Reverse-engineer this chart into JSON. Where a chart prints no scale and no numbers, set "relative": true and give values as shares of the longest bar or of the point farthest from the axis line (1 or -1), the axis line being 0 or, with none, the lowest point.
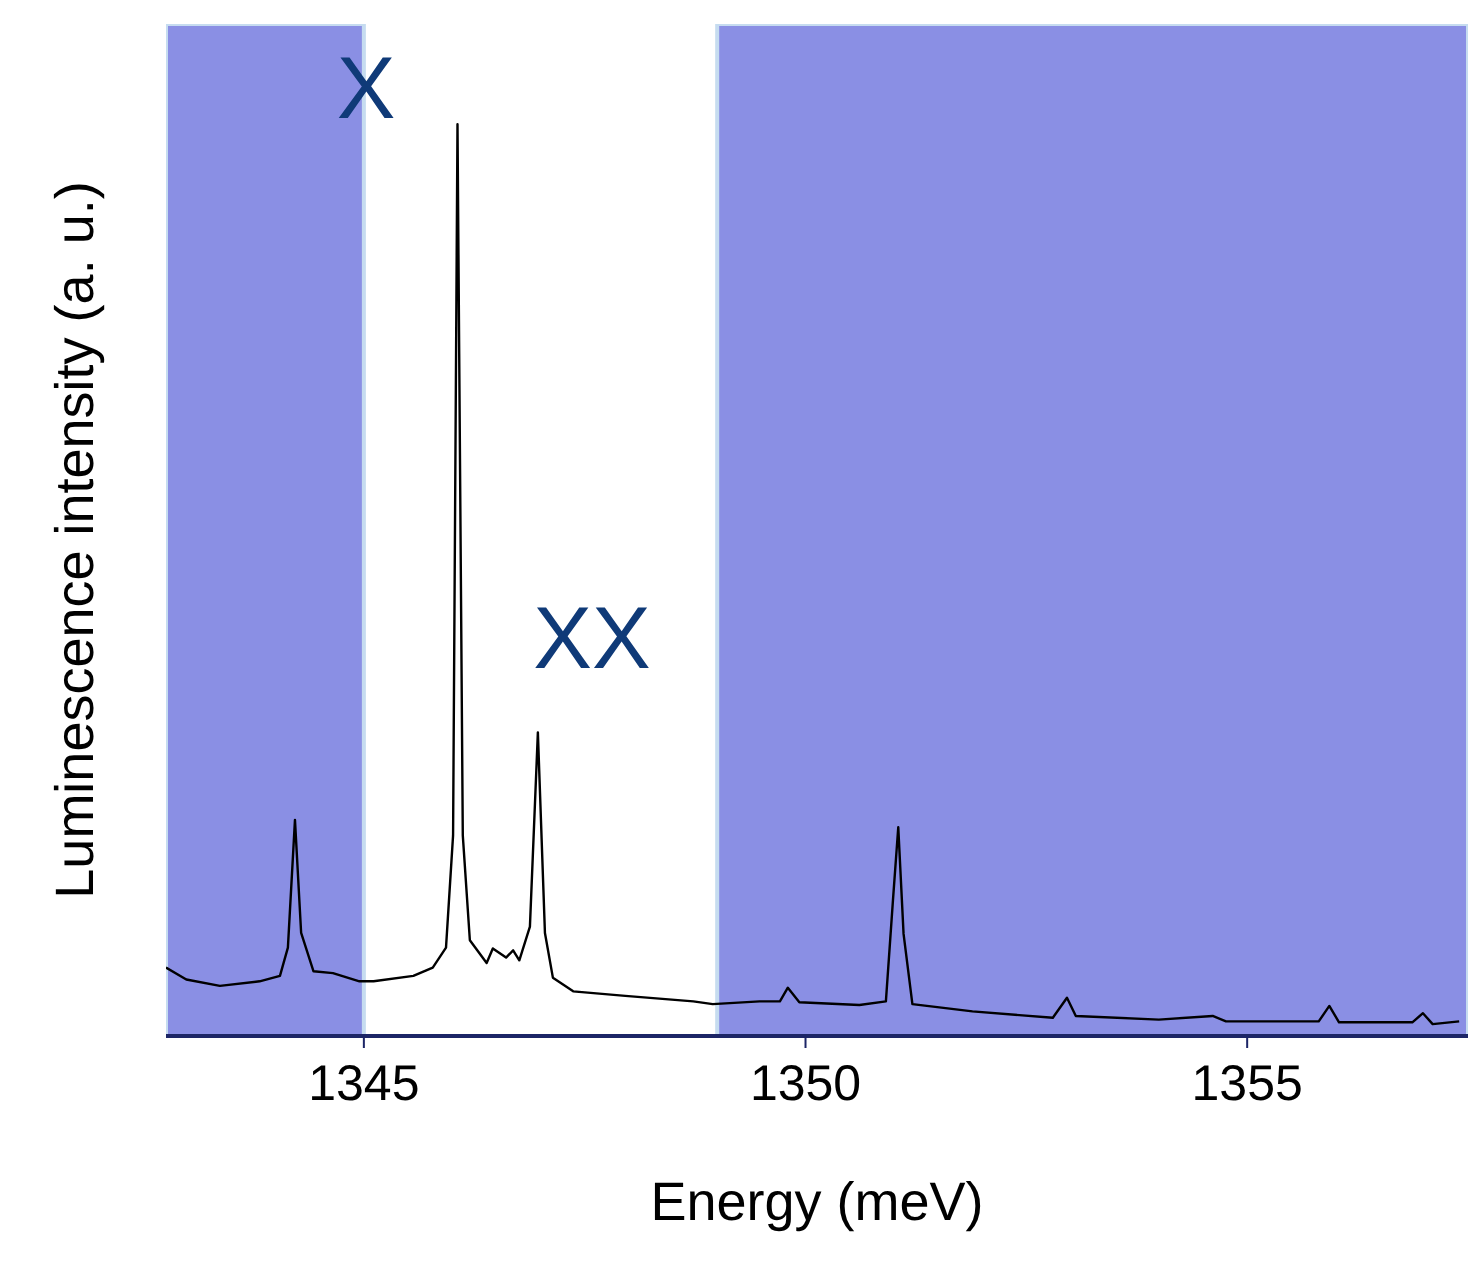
{
  "chart_data": {
    "type": "line",
    "xlabel": "Energy (meV)",
    "ylabel": "Luminescence intensity (a. u.)",
    "relative": true,
    "x": [
      1342.76,
      1342.99,
      1343.37,
      1343.82,
      1344.05,
      1344.14,
      1344.22,
      1344.29,
      1344.43,
      1344.65,
      1344.95,
      1345.11,
      1345.56,
      1345.78,
      1345.93,
      1346.01,
      1346.06,
      1346.12,
      1346.2,
      1346.39,
      1346.46,
      1346.61,
      1346.69,
      1346.76,
      1346.88,
      1346.97,
      1347.05,
      1347.14,
      1347.37,
      1347.96,
      1348.73,
      1348.95,
      1349.48,
      1349.71,
      1349.8,
      1349.93,
      1350.61,
      1350.91,
      1350.99,
      1351.05,
      1351.11,
      1351.21,
      1351.89,
      1352.8,
      1352.96,
      1353.06,
      1354.0,
      1354.61,
      1354.76,
      1355.81,
      1355.93,
      1356.04,
      1356.87,
      1356.99,
      1357.1,
      1357.4
    ],
    "series": [
      {
        "color": "#000000",
        "values": [
          0.075,
          0.062,
          0.055,
          0.06,
          0.066,
          0.097,
          0.237,
          0.113,
          0.071,
          0.069,
          0.06,
          0.06,
          0.066,
          0.075,
          0.097,
          0.22,
          1.0,
          0.22,
          0.105,
          0.08,
          0.096,
          0.086,
          0.094,
          0.083,
          0.12,
          0.333,
          0.113,
          0.064,
          0.049,
          0.044,
          0.038,
          0.035,
          0.038,
          0.038,
          0.053,
          0.037,
          0.034,
          0.038,
          0.149,
          0.229,
          0.112,
          0.035,
          0.027,
          0.02,
          0.042,
          0.022,
          0.018,
          0.022,
          0.016,
          0.016,
          0.033,
          0.015,
          0.015,
          0.025,
          0.013,
          0.016
        ]
      }
    ],
    "xlim": [
      1342.76,
      1357.5
    ],
    "xticks": [
      1345,
      1350,
      1355
    ],
    "bands": [
      {
        "axis": "x",
        "from": 1342.76,
        "to": 1345,
        "color": "#8a8fe4"
      },
      {
        "axis": "x",
        "from": 1349,
        "to": 1357.5,
        "color": "#8a8fe4"
      }
    ],
    "annotations": [
      "X",
      "XX"
    ],
    "marker": "none",
    "line_style": "solid"
  }
}
